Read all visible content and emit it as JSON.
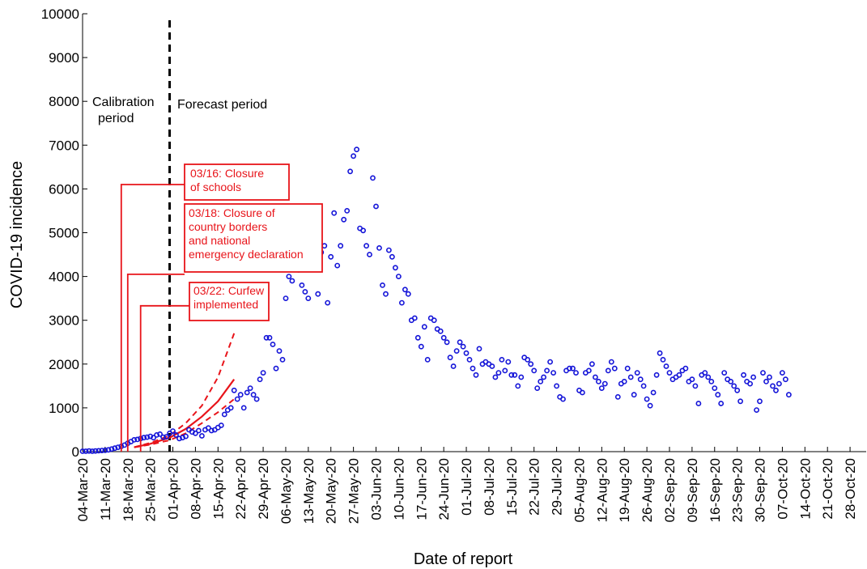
{
  "chart_data": {
    "type": "scatter",
    "xlabel": "Date of report",
    "ylabel": "COVID-19 incidence",
    "ylim": [
      0,
      10000
    ],
    "yticks": [
      0,
      1000,
      2000,
      3000,
      4000,
      5000,
      6000,
      7000,
      8000,
      9000,
      10000
    ],
    "xlim": [
      "2020-03-04",
      "2020-11-02"
    ],
    "xtick_labels": [
      "04-Mar-20",
      "11-Mar-20",
      "18-Mar-20",
      "25-Mar-20",
      "01-Apr-20",
      "08-Apr-20",
      "15-Apr-20",
      "22-Apr-20",
      "29-Apr-20",
      "06-May-20",
      "13-May-20",
      "20-May-20",
      "27-May-20",
      "03-Jun-20",
      "10-Jun-20",
      "17-Jun-20",
      "24-Jun-20",
      "01-Jul-20",
      "08-Jul-20",
      "15-Jul-20",
      "22-Jul-20",
      "29-Jul-20",
      "05-Aug-20",
      "12-Aug-20",
      "19-Aug-20",
      "26-Aug-20",
      "02-Sep-20",
      "09-Sep-20",
      "16-Sep-20",
      "23-Sep-20",
      "30-Sep-20",
      "07-Oct-20",
      "14-Oct-20",
      "21-Oct-20",
      "28-Oct-20"
    ],
    "grid": false,
    "region_labels": {
      "calibration": [
        "Calibration",
        "period"
      ],
      "forecast": "Forecast period"
    },
    "forecast_start": "2020-03-31",
    "observed": {
      "color": "#1414d8",
      "start": "2020-03-04",
      "values": [
        10,
        10,
        15,
        10,
        15,
        20,
        25,
        30,
        40,
        60,
        80,
        100,
        120,
        150,
        190,
        230,
        270,
        280,
        300,
        320,
        330,
        350,
        320,
        380,
        400,
        330,
        340,
        420,
        470,
        380,
        300,
        320,
        350,
        500,
        450,
        420,
        480,
        360,
        500,
        540,
        480,
        500,
        550,
        600,
        850,
        950,
        1000,
        1400,
        1200,
        1300,
        1000,
        1350,
        1450,
        1300,
        1200,
        1650,
        1800,
        2600,
        2600,
        2450,
        1900,
        2300,
        2100,
        3500,
        4000,
        3900,
        4200,
        4150,
        3800,
        3650,
        3500,
        4500,
        4250,
        3600,
        4550,
        4700,
        3400,
        4450,
        5450,
        4250,
        4700,
        5300,
        5500,
        6400,
        6750,
        6900,
        5100,
        5050,
        4700,
        4500,
        6250,
        5600,
        4650,
        3800,
        3600,
        4600,
        4450,
        4200,
        4000,
        3400,
        3700,
        3600,
        3000,
        3050,
        2600,
        2400,
        2850,
        2100,
        3050,
        3000,
        2800,
        2750,
        2600,
        2500,
        2150,
        1950,
        2300,
        2500,
        2400,
        2250,
        2100,
        1900,
        1750,
        2350,
        2000,
        2050,
        2000,
        1950,
        1700,
        1800,
        2100,
        1850,
        2050,
        1750,
        1750,
        1500,
        1700,
        2150,
        2100,
        2000,
        1850,
        1450,
        1600,
        1700,
        1850,
        2050,
        1800,
        1500,
        1250,
        1200,
        1850,
        1900,
        1900,
        1800,
        1400,
        1350,
        1800,
        1850,
        2000,
        1700,
        1600,
        1450,
        1550,
        1850,
        2050,
        1900,
        1250,
        1550,
        1600,
        1900,
        1700,
        1300,
        1800,
        1650,
        1500,
        1200,
        1050,
        1350,
        1750,
        2250,
        2100,
        1950,
        1800,
        1650,
        1700,
        1750,
        1850,
        1900,
        1600,
        1650,
        1500,
        1100,
        1750,
        1800,
        1700,
        1600,
        1450,
        1300,
        1100,
        1800,
        1650,
        1600,
        1500,
        1400,
        1150,
        1750,
        1600,
        1550,
        1700,
        950,
        1150,
        1800,
        1600,
        1700,
        1500,
        1400,
        1550,
        1800,
        1650,
        1300
      ]
    },
    "forecast": {
      "color": "#e8141a",
      "x": [
        "2020-03-20",
        "2020-03-25",
        "2020-03-31",
        "2020-04-05",
        "2020-04-10",
        "2020-04-15",
        "2020-04-20"
      ],
      "mean": [
        100,
        180,
        320,
        520,
        800,
        1150,
        1650
      ],
      "lower": [
        100,
        160,
        260,
        420,
        650,
        900,
        1200
      ],
      "upper": [
        100,
        200,
        370,
        650,
        1050,
        1700,
        2700
      ]
    },
    "annotations": [
      {
        "lines": [
          "03/16: Closure",
          "of schools"
        ],
        "date": "2020-03-16",
        "level": 6100
      },
      {
        "lines": [
          "03/18: Closure of",
          "country borders",
          "and national",
          "emergency declaration"
        ],
        "date": "2020-03-18",
        "level": 4050
      },
      {
        "lines": [
          "03/22: Curfew",
          "implemented"
        ],
        "date": "2020-03-22",
        "level": 3330
      }
    ]
  }
}
